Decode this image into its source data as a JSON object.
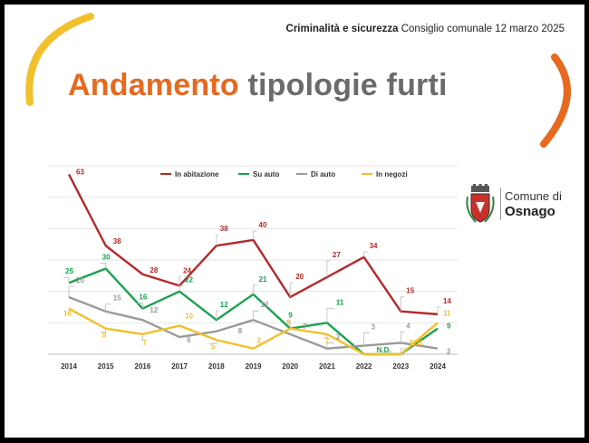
{
  "header": {
    "bold": "Criminalità e sicurezza",
    "rest": "Consiglio comunale 12 marzo 2025"
  },
  "title": {
    "part1": "Andamento",
    "part2": "tipologie furti"
  },
  "logo": {
    "line1": "Comune di",
    "line2": "Osnago"
  },
  "colors": {
    "accent": "#e6691f",
    "red": "#b32a2a",
    "green": "#1aa24e",
    "gray": "#9a9a9a",
    "yellow": "#f2c02b"
  },
  "chart_data": {
    "type": "line",
    "x": [
      "2014",
      "2015",
      "2016",
      "2017",
      "2018",
      "2019",
      "2020",
      "2021",
      "2022",
      "2023",
      "2024"
    ],
    "ylim": [
      0,
      66
    ],
    "grid": true,
    "legend_position": "top",
    "series": [
      {
        "name": "In abitazione",
        "color": "#b32a2a",
        "values": [
          63,
          38,
          28,
          24,
          38,
          40,
          20,
          27,
          34,
          15,
          14
        ],
        "labels": [
          "63",
          "38",
          "28",
          "24",
          "38",
          "40",
          "20",
          "27",
          "34",
          "15",
          "14"
        ]
      },
      {
        "name": "Su auto",
        "color": "#1aa24e",
        "values": [
          25,
          30,
          16,
          22,
          12,
          21,
          9,
          11,
          0,
          0,
          9
        ],
        "labels": [
          "25",
          "30",
          "16",
          "22",
          "12",
          "21",
          "9",
          "11",
          "N.D.",
          "",
          "9"
        ]
      },
      {
        "name": "Di auto",
        "color": "#9a9a9a",
        "values": [
          20,
          15,
          12,
          6,
          8,
          12,
          7,
          2,
          3,
          4,
          2
        ],
        "labels": [
          "20",
          "15",
          "12",
          "6",
          "8",
          "12",
          "7",
          "2",
          "3",
          "4",
          "2"
        ]
      },
      {
        "name": "In negozi",
        "color": "#f2c02b",
        "values": [
          16,
          9,
          7,
          10,
          5,
          2,
          9,
          7,
          0,
          0,
          11
        ],
        "labels": [
          "16",
          "9",
          "7",
          "10",
          "5",
          "2",
          "9",
          "7",
          "",
          "N.D.",
          "11"
        ]
      }
    ]
  }
}
